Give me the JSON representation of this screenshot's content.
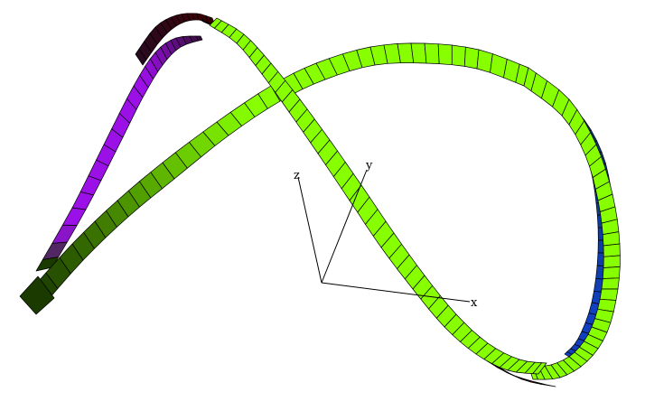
{
  "axes": {
    "x_label": "x",
    "y_label": "y",
    "z_label": "z",
    "color": "#000000"
  },
  "ribbon": {
    "front_color": "#88ff00",
    "back_colors": {
      "far_end": "#1a3a00",
      "violet_loop": "#9b10e6",
      "red_band": "#990000",
      "blue_band": "#1040c0"
    }
  }
}
